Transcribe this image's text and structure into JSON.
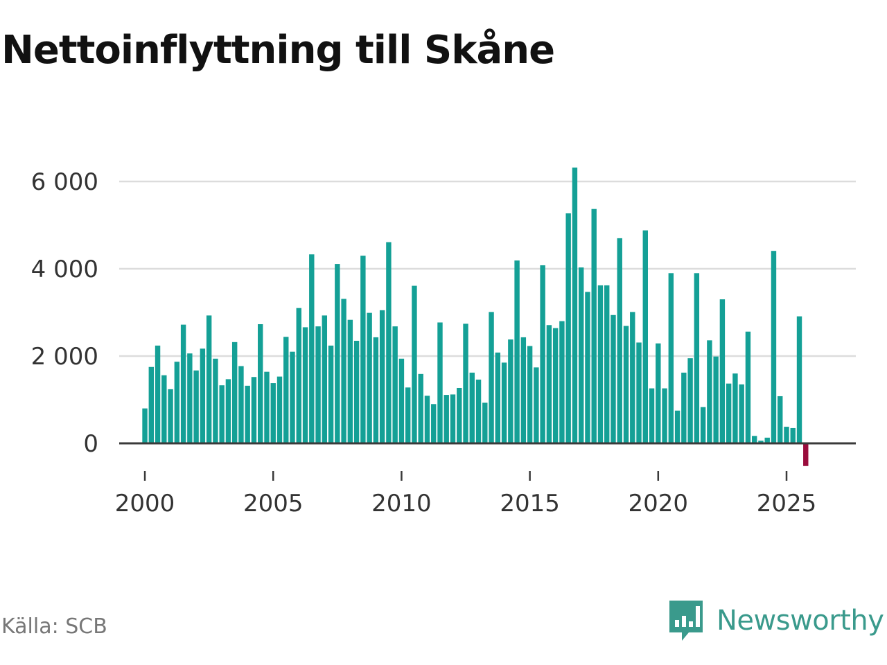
{
  "chart_data": {
    "type": "bar",
    "title": "Nettoinflyttning till Skåne",
    "xlabel": "",
    "ylabel": "",
    "ylim": [
      -500,
      6400
    ],
    "y_ticks": [
      {
        "value": 0,
        "label": "0"
      },
      {
        "value": 2000,
        "label": "2 000"
      },
      {
        "value": 4000,
        "label": "4 000"
      },
      {
        "value": 6000,
        "label": "6 000"
      }
    ],
    "x_ticks": [
      {
        "value": 2000,
        "label": "2000"
      },
      {
        "value": 2005,
        "label": "2005"
      },
      {
        "value": 2010,
        "label": "2010"
      },
      {
        "value": 2015,
        "label": "2015"
      },
      {
        "value": 2020,
        "label": "2020"
      },
      {
        "value": 2025,
        "label": "2025"
      }
    ],
    "x_range": [
      1999.0,
      2027.7
    ],
    "frequency": "quarterly",
    "first_period": 2000.0,
    "values": [
      800,
      1750,
      2240,
      1560,
      1240,
      1870,
      2720,
      2060,
      1670,
      2170,
      2930,
      1940,
      1330,
      1470,
      2320,
      1770,
      1320,
      1520,
      2730,
      1640,
      1380,
      1530,
      2440,
      2100,
      3100,
      2660,
      4330,
      2680,
      2930,
      2240,
      4110,
      3310,
      2830,
      2350,
      4300,
      2990,
      2430,
      3050,
      4610,
      2680,
      1940,
      1280,
      3610,
      1590,
      1090,
      900,
      2770,
      1110,
      1120,
      1270,
      2740,
      1620,
      1460,
      930,
      3010,
      2080,
      1850,
      2380,
      4190,
      2430,
      2230,
      1740,
      4080,
      2710,
      2640,
      2800,
      5270,
      6320,
      4030,
      3470,
      5370,
      3620,
      3620,
      2940,
      4700,
      2690,
      3010,
      2310,
      4880,
      1260,
      2290,
      1260,
      3900,
      750,
      1620,
      1950,
      3900,
      830,
      2360,
      1990,
      3300,
      1370,
      1600,
      1350,
      2560,
      170,
      60,
      130,
      4410,
      1080,
      380,
      350,
      2910,
      -520
    ],
    "colors": {
      "positive": "#14a096",
      "negative": "#9a0c3c",
      "grid": "#dcdcdc",
      "baseline": "#3a3a3a",
      "tick_text": "#333333"
    }
  },
  "source_label": "Källa: SCB",
  "brand": {
    "name": "Newsworthy",
    "icon": "newsworthy-logo-icon",
    "color": "#3a9a8c"
  }
}
